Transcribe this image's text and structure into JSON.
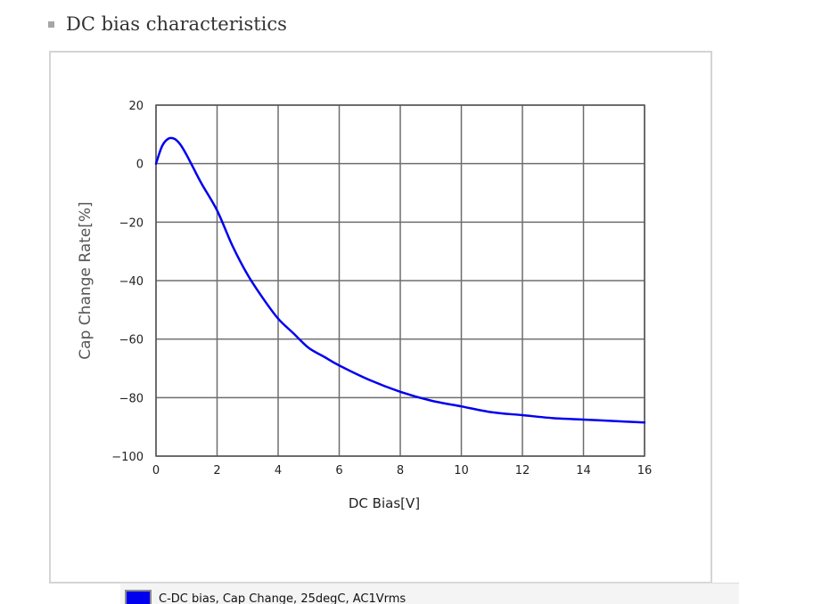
{
  "page": {
    "heading": "DC bias characteristics"
  },
  "chart_data": {
    "type": "line",
    "title": "",
    "xlabel": "DC Bias[V]",
    "ylabel": "Cap Change Rate[%]",
    "xlim": [
      0,
      16
    ],
    "ylim": [
      -100,
      20
    ],
    "xticks": [
      0,
      2,
      4,
      6,
      8,
      10,
      12,
      14,
      16
    ],
    "yticks": [
      20,
      0,
      -20,
      -40,
      -60,
      -80,
      -100
    ],
    "grid": true,
    "legend_position": "bottom",
    "series": [
      {
        "name": "C-DC bias, Cap Change, 25degC, AC1Vrms",
        "color": "#0000ee",
        "x": [
          0,
          0.2,
          0.4,
          0.6,
          0.8,
          1.0,
          1.2,
          1.5,
          2.0,
          2.5,
          3.0,
          3.5,
          4.0,
          4.5,
          5.0,
          5.5,
          6.0,
          7.0,
          8.0,
          9.0,
          10.0,
          11.0,
          12.0,
          13.0,
          14.0,
          15.0,
          16.0
        ],
        "y": [
          0,
          6,
          8.5,
          8.5,
          6.5,
          3,
          -1,
          -7,
          -16,
          -28,
          -38,
          -46,
          -53,
          -58,
          -63,
          -66,
          -69,
          -74,
          -78,
          -81,
          -83,
          -85,
          -86,
          -87,
          -87.5,
          -88,
          -88.5
        ]
      }
    ]
  }
}
